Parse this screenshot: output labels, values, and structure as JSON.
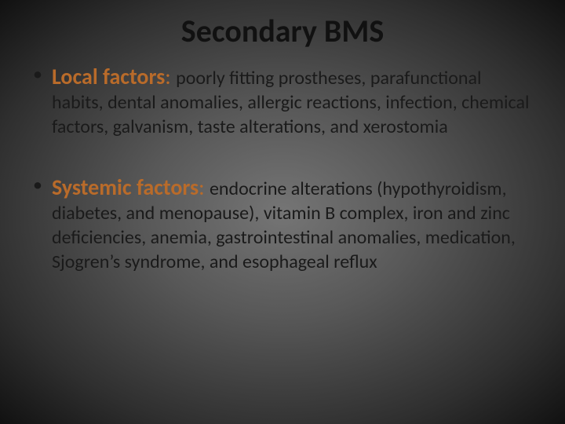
{
  "slide": {
    "title": "Secondary BMS",
    "background": {
      "type": "radial-gradient",
      "center_color": "#757575",
      "mid_color": "#585858",
      "outer_color": "#2f2f2f",
      "edge_color": "#111111"
    },
    "title_style": {
      "font_size_pt": 40,
      "font_weight": 700,
      "color": "#111111",
      "align": "center"
    },
    "bullets": [
      {
        "label": "Local factors",
        "text": "poorly fitting prostheses, parafunctional habits, dental anomalies, allergic reactions, infection, chemical factors, galvanism, taste alterations, and xerostomia"
      },
      {
        "label": "Systemic factors",
        "text": "endocrine alterations (hypothyroidism, diabetes, and menopause), vitamin B complex, iron and zinc deficiencies, anemia, gastrointestinal anomalies, medication, Sjogren’s syndrome, and esophageal reflux"
      }
    ],
    "bullet_style": {
      "label_color": "#b96b2a",
      "label_font_size_pt": 28,
      "label_font_weight": 700,
      "body_color": "#1a1a1a",
      "body_font_size_pt": 24,
      "bullet_glyph": "•",
      "bullet_color": "#1a1a1a"
    }
  }
}
